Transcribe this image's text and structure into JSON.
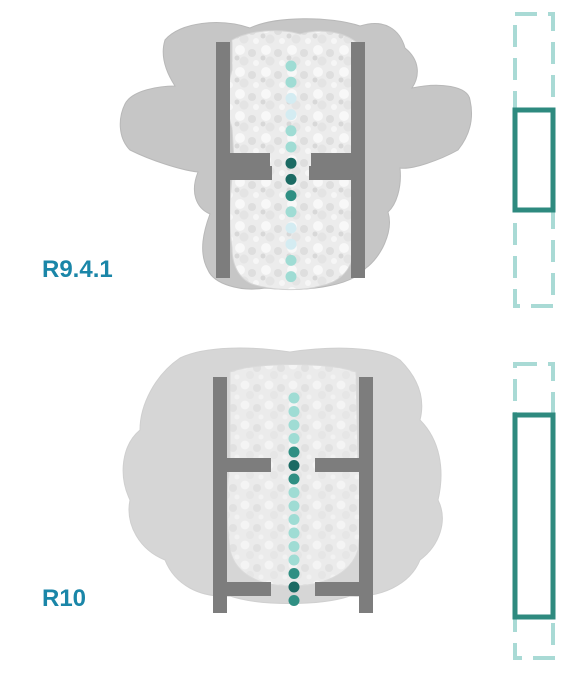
{
  "panels": [
    {
      "id": "r941",
      "label": "R9.4.1",
      "bead_colors": [
        "light",
        "light",
        "pale",
        "pale",
        "light",
        "light",
        "dark",
        "dark",
        "mid",
        "light",
        "pale",
        "pale",
        "light",
        "light"
      ]
    },
    {
      "id": "r10",
      "label": "R10",
      "bead_colors": [
        "light",
        "light",
        "light",
        "light",
        "mid",
        "dark",
        "mid",
        "light",
        "light",
        "light",
        "light",
        "light",
        "light",
        "mid",
        "dark",
        "mid"
      ]
    }
  ],
  "colors": {
    "label_text": "#1a86a8",
    "wall": "#7d7d7d",
    "surface_light": "#ececec",
    "surface_shadow": "#d0d0d0",
    "section_gray": "#c6c6c6",
    "bead_dark": "#1b6a63",
    "bead_mid": "#2f8f83",
    "bead_light": "#9fdcd4",
    "bead_pale": "#d4ecf2",
    "reader_solid": "#2e8a7f",
    "reader_dashed": "#a9dad5"
  }
}
